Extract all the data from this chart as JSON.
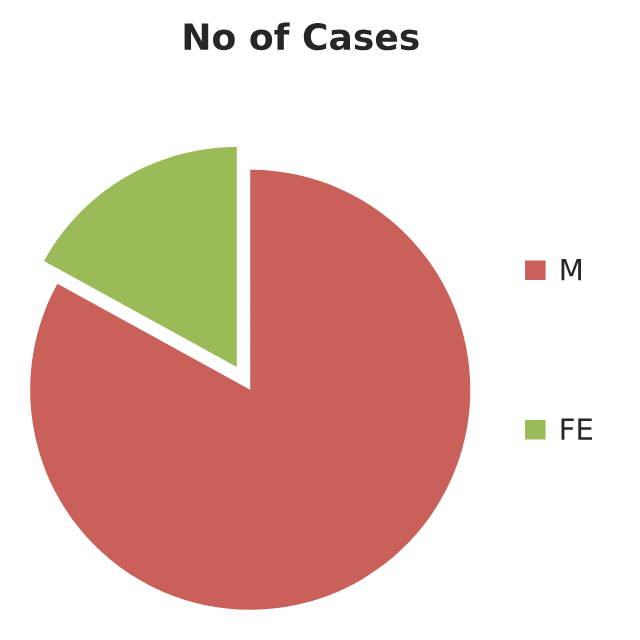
{
  "chart_data": {
    "type": "pie",
    "title": "No of Cases",
    "categories": [
      "M",
      "FE"
    ],
    "values": [
      83,
      17
    ],
    "colors": [
      "#c9605a",
      "#9bbb59"
    ],
    "legend": "right"
  }
}
